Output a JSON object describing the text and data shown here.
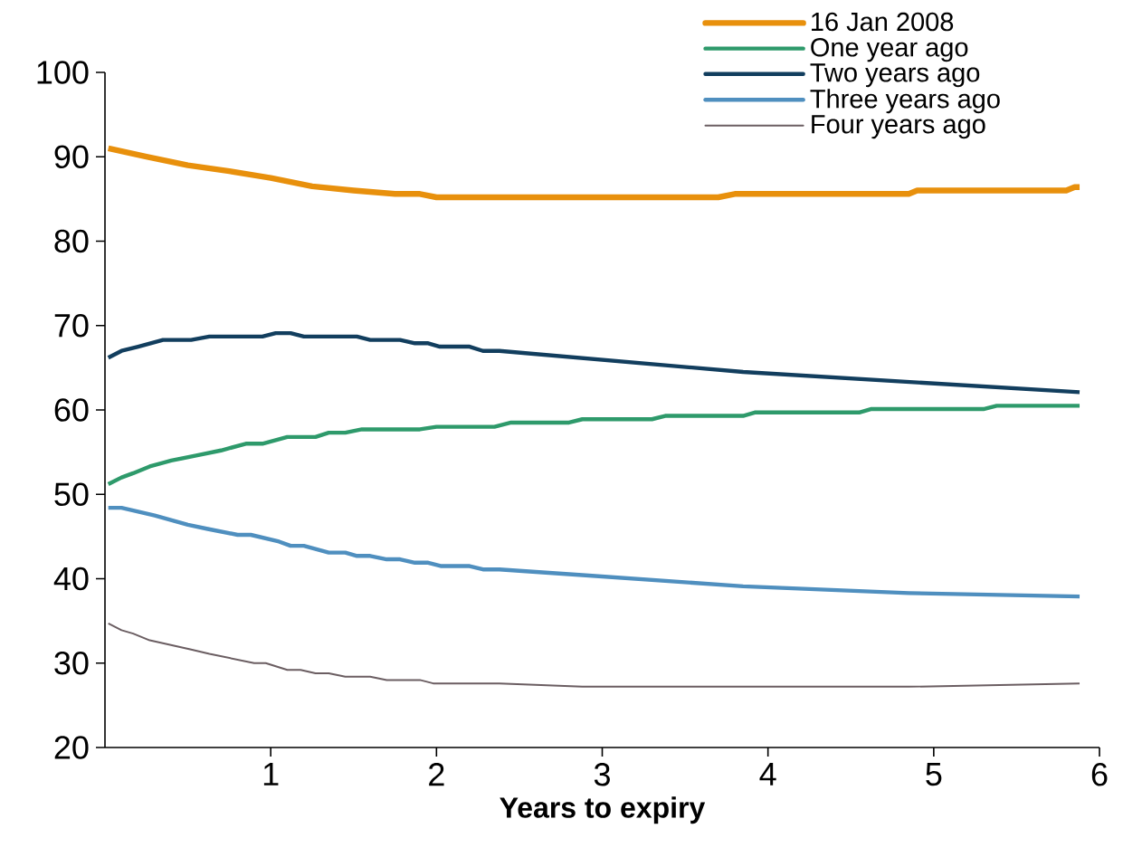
{
  "chart_data": {
    "type": "line",
    "xlabel": "Years to expiry",
    "xlim": [
      0,
      6
    ],
    "xticks": [
      1,
      2,
      3,
      4,
      5,
      6
    ],
    "ylim": [
      20,
      100
    ],
    "yticks": [
      20,
      30,
      40,
      50,
      60,
      70,
      80,
      90,
      100
    ],
    "grid": false,
    "legend": "top right",
    "marker": "none",
    "line_style": "solid",
    "series": [
      {
        "name": "16 Jan 2008",
        "color": "#e8900c",
        "x": [
          0.02,
          0.25,
          0.5,
          0.75,
          1.0,
          1.25,
          1.5,
          1.75,
          1.9,
          2.0,
          3.7,
          3.8,
          4.85,
          4.9,
          5.8,
          5.85,
          5.88
        ],
        "values": [
          91,
          90,
          89,
          88.3,
          87.5,
          86.5,
          86,
          85.6,
          85.6,
          85.2,
          85.2,
          85.6,
          85.6,
          86,
          86,
          86.4,
          86.4
        ]
      },
      {
        "name": "One year ago",
        "color": "#2e9a6b",
        "x": [
          0.02,
          0.1,
          0.17,
          0.27,
          0.4,
          0.55,
          0.7,
          0.85,
          0.95,
          1.1,
          1.27,
          1.35,
          1.45,
          1.55,
          1.9,
          2.0,
          2.35,
          2.45,
          2.8,
          2.88,
          3.3,
          3.38,
          3.85,
          3.92,
          4.55,
          4.62,
          5.3,
          5.38,
          5.88
        ],
        "values": [
          51.2,
          52,
          52.5,
          53.3,
          54,
          54.6,
          55.2,
          56,
          56,
          56.8,
          56.8,
          57.3,
          57.3,
          57.7,
          57.7,
          58,
          58,
          58.5,
          58.5,
          58.9,
          58.9,
          59.3,
          59.3,
          59.7,
          59.7,
          60.1,
          60.1,
          60.5,
          60.5
        ]
      },
      {
        "name": "Two years ago",
        "color": "#123e5e",
        "x": [
          0.02,
          0.1,
          0.2,
          0.35,
          0.52,
          0.63,
          0.95,
          1.03,
          1.12,
          1.2,
          1.52,
          1.6,
          1.78,
          1.87,
          1.95,
          2.02,
          2.2,
          2.28,
          2.38,
          3.85,
          5.88
        ],
        "values": [
          66.2,
          67,
          67.5,
          68.3,
          68.3,
          68.7,
          68.7,
          69.1,
          69.1,
          68.7,
          68.7,
          68.3,
          68.3,
          67.9,
          67.9,
          67.5,
          67.5,
          67,
          67,
          64.5,
          62.1
        ]
      },
      {
        "name": "Three years ago",
        "color": "#4f8fbf",
        "x": [
          0.02,
          0.1,
          0.3,
          0.5,
          0.62,
          0.8,
          0.88,
          1.05,
          1.12,
          1.2,
          1.35,
          1.45,
          1.52,
          1.6,
          1.7,
          1.78,
          1.87,
          1.95,
          2.03,
          2.2,
          2.28,
          2.38,
          2.9,
          3.85,
          4.85,
          5.88
        ],
        "values": [
          48.4,
          48.4,
          47.5,
          46.4,
          45.9,
          45.2,
          45.2,
          44.4,
          43.9,
          43.9,
          43.1,
          43.1,
          42.7,
          42.7,
          42.3,
          42.3,
          41.9,
          41.9,
          41.5,
          41.5,
          41.1,
          41.1,
          40.4,
          39.1,
          38.3,
          37.9
        ]
      },
      {
        "name": "Four years ago",
        "color": "#6b5e62",
        "x": [
          0.02,
          0.1,
          0.17,
          0.27,
          0.52,
          0.63,
          0.9,
          0.97,
          1.1,
          1.18,
          1.27,
          1.35,
          1.45,
          1.6,
          1.7,
          1.9,
          1.98,
          2.38,
          2.88,
          4.85,
          5.88
        ],
        "values": [
          34.7,
          33.9,
          33.5,
          32.7,
          31.6,
          31.1,
          30,
          30,
          29.2,
          29.2,
          28.8,
          28.8,
          28.4,
          28.4,
          28,
          28,
          27.6,
          27.6,
          27.2,
          27.2,
          27.6
        ]
      }
    ]
  }
}
